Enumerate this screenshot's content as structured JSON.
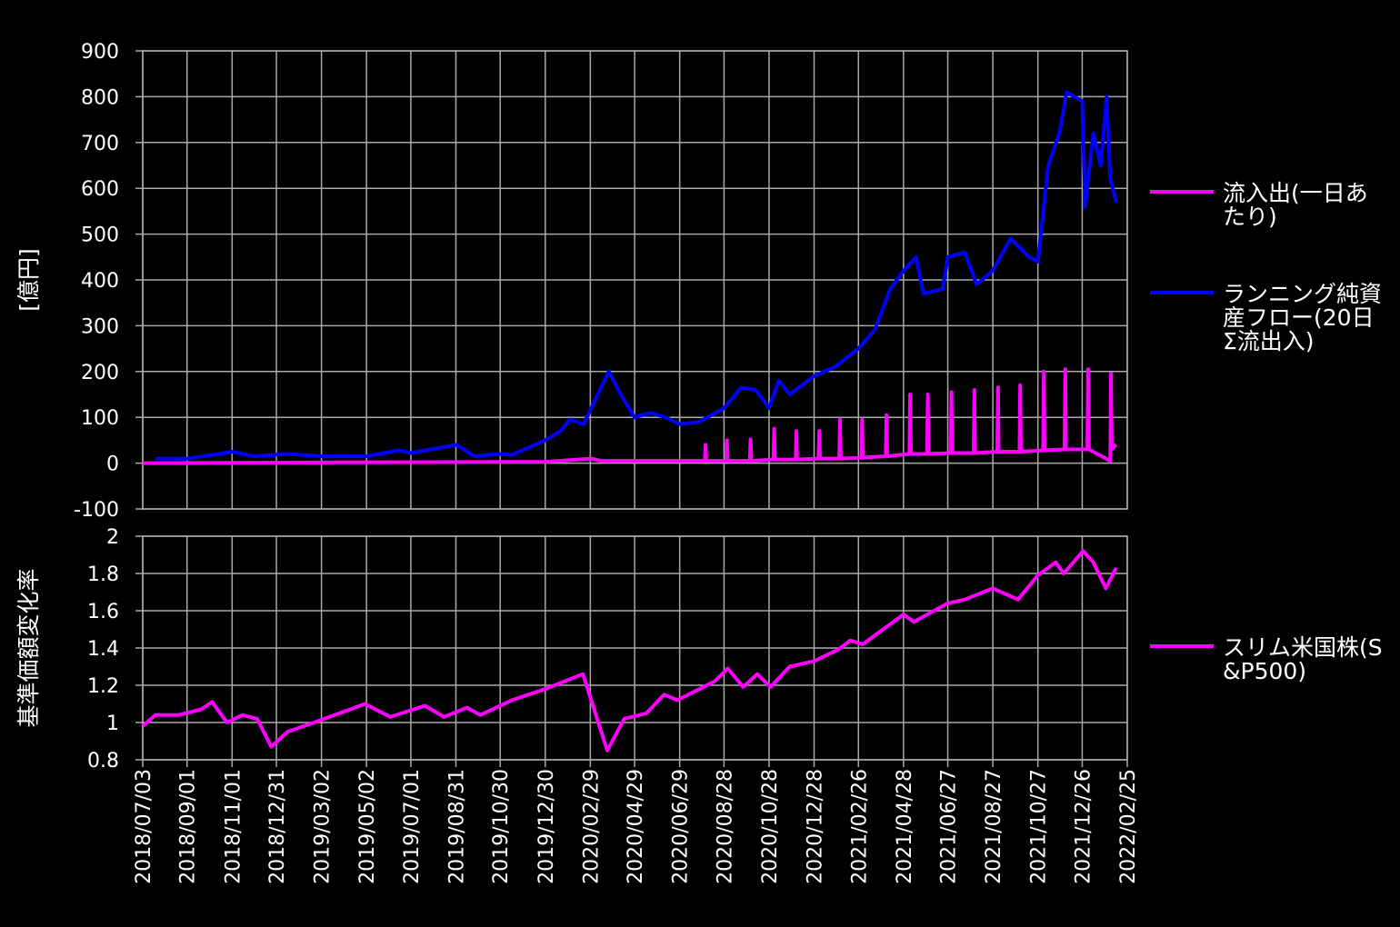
{
  "chart_data": [
    {
      "type": "line",
      "y_label": "[億円]",
      "xlim": [
        "2018/07/03",
        "2022/02/25"
      ],
      "xticks": [
        "2018/07/03",
        "2018/09/01",
        "2018/11/01",
        "2018/12/31",
        "2019/03/02",
        "2019/05/02",
        "2019/07/01",
        "2019/08/31",
        "2019/10/30",
        "2019/12/30",
        "2020/02/29",
        "2020/04/29",
        "2020/06/29",
        "2020/08/28",
        "2020/10/28",
        "2020/12/28",
        "2021/02/26",
        "2021/04/28",
        "2021/06/27",
        "2021/08/27",
        "2021/10/27",
        "2021/12/26",
        "2022/02/25"
      ],
      "ylim": [
        -100,
        900
      ],
      "yticks": [
        -100,
        0,
        100,
        200,
        300,
        400,
        500,
        600,
        700,
        800,
        900
      ],
      "grid": true,
      "series": [
        {
          "name": "流入出(一日あたり)",
          "color": "#ff00ff",
          "x": [
            "2018/07/03",
            "2019/06/01",
            "2019/12/30",
            "2020/03/01",
            "2020/03/15",
            "2020/06/01",
            "2020/07/20",
            "2020/08/02",
            "2020/08/03",
            "2020/08/04",
            "2020/08/31",
            "2020/09/01",
            "2020/09/02",
            "2020/10/02",
            "2020/10/03",
            "2020/10/04",
            "2020/11/03",
            "2020/11/04",
            "2020/11/05",
            "2020/12/03",
            "2020/12/04",
            "2020/12/05",
            "2021/01/03",
            "2021/01/04",
            "2021/01/05",
            "2021/01/31",
            "2021/02/01",
            "2021/02/02",
            "2021/03/02",
            "2021/03/03",
            "2021/03/04",
            "2021/04/04",
            "2021/04/05",
            "2021/04/06",
            "2021/05/06",
            "2021/05/07",
            "2021/05/08",
            "2021/05/30",
            "2021/05/31",
            "2021/06/01",
            "2021/07/01",
            "2021/07/02",
            "2021/07/03",
            "2021/08/01",
            "2021/08/02",
            "2021/08/03",
            "2021/09/02",
            "2021/09/03",
            "2021/09/04",
            "2021/10/02",
            "2021/10/03",
            "2021/10/04",
            "2021/11/03",
            "2021/11/04",
            "2021/11/05",
            "2021/12/02",
            "2021/12/03",
            "2021/12/04",
            "2022/01/02",
            "2022/01/03",
            "2022/01/04",
            "2022/02/02",
            "2022/02/03",
            "2022/02/04",
            "2022/02/10"
          ],
          "values": [
            0,
            2,
            3,
            10,
            5,
            5,
            5,
            5,
            40,
            5,
            5,
            50,
            5,
            5,
            52,
            5,
            8,
            75,
            8,
            8,
            70,
            8,
            10,
            70,
            10,
            10,
            95,
            10,
            12,
            95,
            12,
            15,
            105,
            15,
            20,
            150,
            20,
            20,
            150,
            20,
            22,
            155,
            22,
            22,
            160,
            22,
            25,
            165,
            25,
            25,
            170,
            25,
            28,
            200,
            28,
            30,
            205,
            30,
            30,
            205,
            30,
            5,
            195,
            30,
            40
          ]
        },
        {
          "name": "ランニング純資産フロー(20日Σ流出入)",
          "color": "#0000ff",
          "x": [
            "2018/07/20",
            "2018/09/01",
            "2018/10/15",
            "2018/11/01",
            "2018/12/01",
            "2019/01/15",
            "2019/03/02",
            "2019/05/02",
            "2019/06/15",
            "2019/07/01",
            "2019/08/15",
            "2019/09/01",
            "2019/09/25",
            "2019/10/30",
            "2019/11/15",
            "2019/12/30",
            "2020/01/20",
            "2020/02/01",
            "2020/02/20",
            "2020/03/10",
            "2020/03/25",
            "2020/04/10",
            "2020/04/29",
            "2020/05/20",
            "2020/06/10",
            "2020/06/29",
            "2020/07/25",
            "2020/08/28",
            "2020/09/20",
            "2020/10/10",
            "2020/10/28",
            "2020/11/10",
            "2020/11/25",
            "2020/12/28",
            "2021/01/25",
            "2021/02/26",
            "2021/03/20",
            "2021/04/10",
            "2021/04/28",
            "2021/05/15",
            "2021/05/25",
            "2021/06/20",
            "2021/06/27",
            "2021/07/20",
            "2021/08/05",
            "2021/08/27",
            "2021/09/20",
            "2021/10/15",
            "2021/10/27",
            "2021/11/10",
            "2021/11/25",
            "2021/12/05",
            "2021/12/26",
            "2021/12/30",
            "2022/01/10",
            "2022/01/20",
            "2022/01/28",
            "2022/02/02",
            "2022/02/10"
          ],
          "values": [
            10,
            10,
            20,
            25,
            15,
            20,
            15,
            15,
            28,
            22,
            35,
            40,
            15,
            20,
            18,
            50,
            70,
            95,
            85,
            150,
            200,
            150,
            100,
            110,
            100,
            85,
            90,
            120,
            165,
            160,
            120,
            180,
            150,
            190,
            210,
            250,
            290,
            380,
            420,
            450,
            370,
            380,
            450,
            460,
            390,
            420,
            490,
            450,
            440,
            650,
            720,
            810,
            790,
            560,
            720,
            650,
            800,
            620,
            570
          ]
        }
      ]
    },
    {
      "type": "line",
      "y_label": "基準価額変化率",
      "xlim": [
        "2018/07/03",
        "2022/02/25"
      ],
      "xticks": [
        "2018/07/03",
        "2018/09/01",
        "2018/11/01",
        "2018/12/31",
        "2019/03/02",
        "2019/05/02",
        "2019/07/01",
        "2019/08/31",
        "2019/10/30",
        "2019/12/30",
        "2020/02/29",
        "2020/04/29",
        "2020/06/29",
        "2020/08/28",
        "2020/10/28",
        "2020/12/28",
        "2021/02/26",
        "2021/04/28",
        "2021/06/27",
        "2021/08/27",
        "2021/10/27",
        "2021/12/26",
        "2022/02/25"
      ],
      "ylim": [
        0.8,
        2
      ],
      "yticks": [
        0.8,
        1,
        1.2,
        1.4,
        1.6,
        1.8,
        2
      ],
      "grid": true,
      "series": [
        {
          "name": "スリム米国株(S&P500)",
          "color": "#ff00ff",
          "x": [
            "2018/07/03",
            "2018/07/20",
            "2018/08/20",
            "2018/09/20",
            "2018/10/05",
            "2018/10/25",
            "2018/11/15",
            "2018/12/05",
            "2018/12/24",
            "2019/01/15",
            "2019/02/20",
            "2019/03/20",
            "2019/04/30",
            "2019/06/03",
            "2019/07/20",
            "2019/08/15",
            "2019/09/15",
            "2019/10/03",
            "2019/11/15",
            "2019/12/30",
            "2020/02/19",
            "2020/03/23",
            "2020/04/15",
            "2020/05/15",
            "2020/06/08",
            "2020/06/26",
            "2020/08/15",
            "2020/09/02",
            "2020/09/23",
            "2020/10/12",
            "2020/10/30",
            "2020/11/25",
            "2020/12/28",
            "2021/01/29",
            "2021/02/15",
            "2021/03/04",
            "2021/04/28",
            "2021/05/12",
            "2021/06/27",
            "2021/07/20",
            "2021/08/27",
            "2021/09/30",
            "2021/10/27",
            "2021/11/20",
            "2021/12/01",
            "2021/12/27",
            "2022/01/10",
            "2022/01/27",
            "2022/02/10"
          ],
          "values": [
            0.98,
            1.04,
            1.04,
            1.07,
            1.11,
            1.0,
            1.04,
            1.02,
            0.87,
            0.95,
            1.0,
            1.04,
            1.1,
            1.03,
            1.09,
            1.03,
            1.08,
            1.04,
            1.12,
            1.18,
            1.26,
            0.85,
            1.02,
            1.05,
            1.15,
            1.12,
            1.22,
            1.29,
            1.19,
            1.26,
            1.19,
            1.3,
            1.33,
            1.39,
            1.44,
            1.42,
            1.58,
            1.54,
            1.64,
            1.66,
            1.72,
            1.66,
            1.79,
            1.86,
            1.8,
            1.92,
            1.86,
            1.72,
            1.83
          ]
        }
      ]
    }
  ]
}
